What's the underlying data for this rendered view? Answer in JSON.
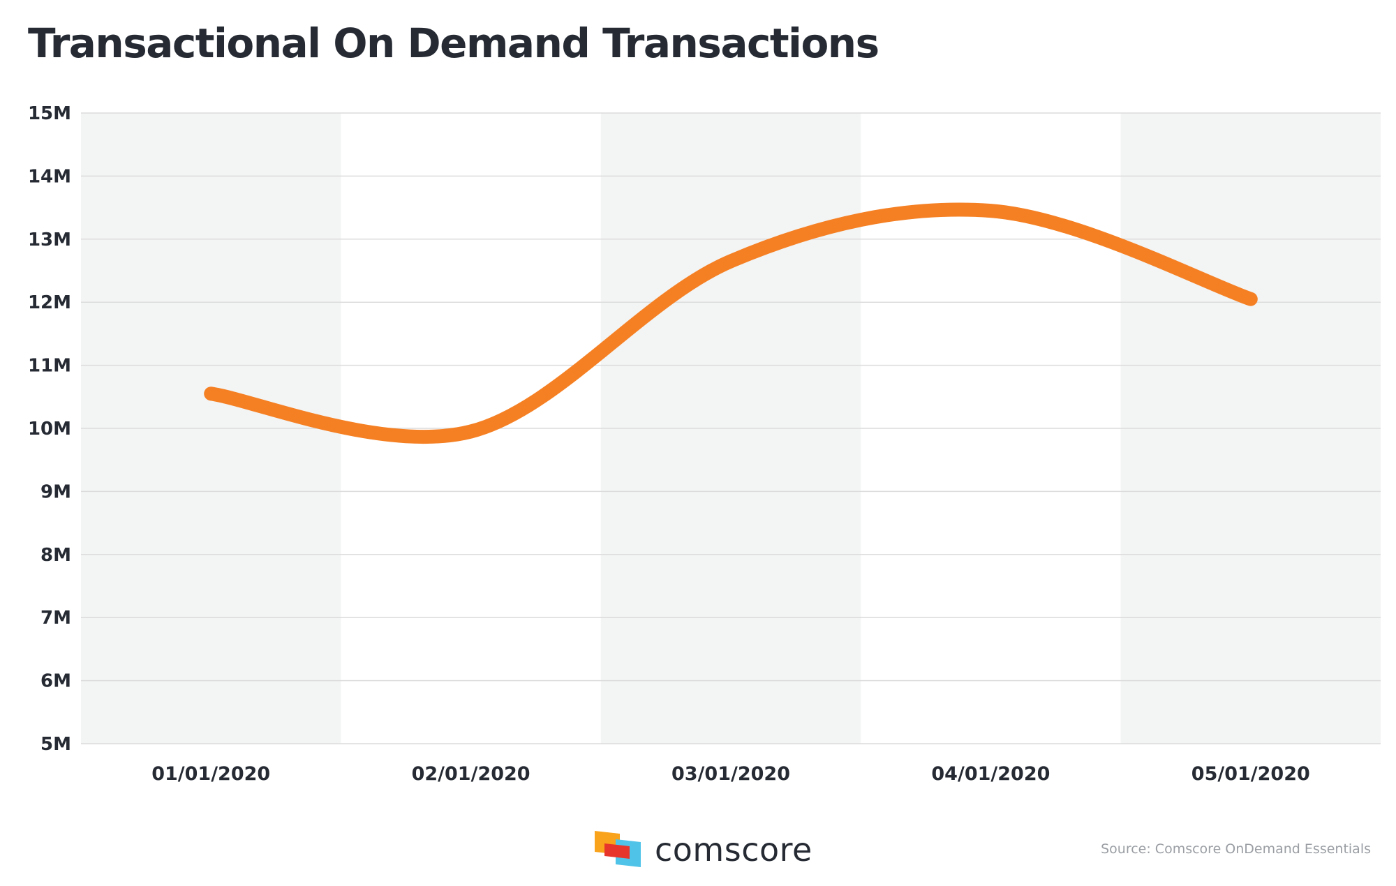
{
  "chart_data": {
    "type": "line",
    "title": "Transactional On Demand Transactions",
    "xlabel": "",
    "ylabel": "",
    "categories": [
      "01/01/2020",
      "02/01/2020",
      "03/01/2020",
      "04/01/2020",
      "05/01/2020"
    ],
    "series": [
      {
        "values": [
          10.55,
          9.95,
          12.65,
          13.45,
          12.05
        ],
        "color": "#f58024"
      }
    ],
    "ylim": [
      5,
      15
    ],
    "yticks": [
      "15M",
      "14M",
      "13M",
      "12M",
      "11M",
      "10M",
      "9M",
      "8M",
      "7M",
      "6M",
      "5M"
    ],
    "grid": true,
    "alternating_bands": true,
    "band_color": "#f3f4f4",
    "gridline_color": "#dcdcdc",
    "line_color": "#f58024"
  },
  "brand": {
    "name": "comscore",
    "logo_colors": [
      "#f9a21c",
      "#e8352b",
      "#4fc3e8"
    ]
  },
  "source_note": "Source: Comscore OnDemand Essentials"
}
